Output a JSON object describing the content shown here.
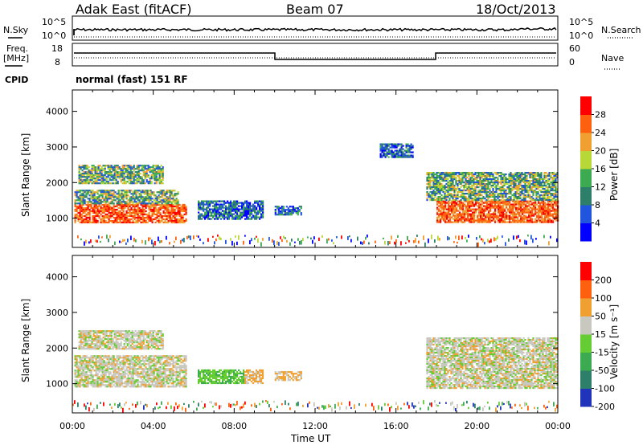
{
  "header": {
    "title": "Adak East (fitACF)",
    "beam": "Beam 07",
    "date": "18/Oct/2013"
  },
  "top_panels": {
    "nsky_label": "N.Sky",
    "nsearch_label": "N.Search",
    "nsky_ticks": [
      "10^5",
      "10^0"
    ],
    "nsearch_ticks": [
      "10^5",
      "10^0"
    ],
    "freq_label_1": "Freq.",
    "freq_label_2": "[MHz]",
    "freq_ticks": [
      "18",
      "8"
    ],
    "nave_label": "Nave",
    "nave_ticks": [
      "60",
      "0"
    ],
    "cpid_label": "CPID",
    "cpid_text": "normal (fast) 151 RF"
  },
  "chart_data": [
    {
      "type": "heatmap",
      "name": "power",
      "ylabel": "Slant Range [km]",
      "xlabel": "",
      "ylim": [
        180,
        4600
      ],
      "yticks": [
        1000,
        2000,
        3000,
        4000
      ],
      "xlim_hours": [
        0,
        24
      ],
      "colorbar": {
        "label": "Power [dB]",
        "ticks": [
          4,
          8,
          12,
          16,
          20,
          24,
          28
        ],
        "colors": [
          "#0000ff",
          "#2255dd",
          "#2d7f6a",
          "#3caa50",
          "#b8d838",
          "#f0a030",
          "#ff6010",
          "#ff0000"
        ]
      },
      "regions": [
        {
          "t": [
            0.1,
            5.6
          ],
          "r": [
            900,
            1400
          ],
          "level": "high"
        },
        {
          "t": [
            0.1,
            5.2
          ],
          "r": [
            1400,
            1800
          ],
          "level": "mid"
        },
        {
          "t": [
            0.3,
            4.5
          ],
          "r": [
            2000,
            2500
          ],
          "level": "mid"
        },
        {
          "t": [
            6.2,
            9.4
          ],
          "r": [
            1000,
            1500
          ],
          "level": "low"
        },
        {
          "t": [
            10.0,
            11.3
          ],
          "r": [
            1100,
            1350
          ],
          "level": "low"
        },
        {
          "t": [
            15.2,
            16.8
          ],
          "r": [
            2700,
            3100
          ],
          "level": "low"
        },
        {
          "t": [
            18.0,
            24.0
          ],
          "r": [
            900,
            1500
          ],
          "level": "high"
        },
        {
          "t": [
            17.5,
            24.0
          ],
          "r": [
            1500,
            2300
          ],
          "level": "mid"
        }
      ]
    },
    {
      "type": "heatmap",
      "name": "velocity",
      "ylabel": "Slant Range [km]",
      "xlabel": "Time UT",
      "ylim": [
        180,
        4600
      ],
      "yticks": [
        1000,
        2000,
        3000,
        4000
      ],
      "xticks": [
        "00:00",
        "04:00",
        "08:00",
        "12:00",
        "16:00",
        "20:00",
        "00:00"
      ],
      "colorbar": {
        "label": "Velocity [m s⁻¹]",
        "ticks": [
          200,
          100,
          50,
          15,
          -15,
          -50,
          -100,
          -200
        ],
        "colors": [
          "#2233bb",
          "#2d7f6a",
          "#3caa50",
          "#66cc33",
          "#c8c8c0",
          "#f0a030",
          "#ff6010",
          "#ff0000"
        ]
      },
      "regions": [
        {
          "t": [
            0.1,
            5.6
          ],
          "r": [
            900,
            1800
          ],
          "level": "zero"
        },
        {
          "t": [
            0.3,
            4.5
          ],
          "r": [
            2000,
            2500
          ],
          "level": "zero"
        },
        {
          "t": [
            6.2,
            8.5
          ],
          "r": [
            1000,
            1400
          ],
          "level": "green"
        },
        {
          "t": [
            8.5,
            9.4
          ],
          "r": [
            1000,
            1400
          ],
          "level": "orange"
        },
        {
          "t": [
            10.0,
            11.3
          ],
          "r": [
            1100,
            1350
          ],
          "level": "orange"
        },
        {
          "t": [
            17.5,
            24.0
          ],
          "r": [
            900,
            2300
          ],
          "level": "zero"
        }
      ]
    }
  ]
}
